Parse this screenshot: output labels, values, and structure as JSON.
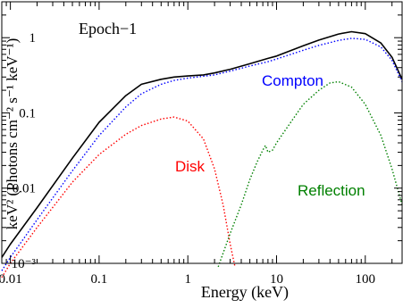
{
  "chart_data": {
    "type": "line",
    "title": "",
    "annotation": "Epoch−1",
    "xlabel": "Energy (keV)",
    "ylabel": "keV² (Photons cm⁻² s⁻¹ keV⁻¹)",
    "xscale": "log",
    "yscale": "log",
    "xlim": [
      0.008,
      260
    ],
    "ylim": [
      0.001,
      3
    ],
    "x_ticks": [
      {
        "value": 0.01,
        "label": "0.01"
      },
      {
        "value": 0.1,
        "label": "0.1"
      },
      {
        "value": 1,
        "label": "1"
      },
      {
        "value": 10,
        "label": "10"
      },
      {
        "value": 100,
        "label": "100"
      }
    ],
    "y_ticks": [
      {
        "value": 0.001,
        "label": "10⁻³"
      },
      {
        "value": 0.01,
        "label": "0.01"
      },
      {
        "value": 0.1,
        "label": "0.1"
      },
      {
        "value": 1,
        "label": "1"
      }
    ],
    "grid": false,
    "legend": "none",
    "series": [
      {
        "name": "",
        "color": "#000000",
        "style": "solid",
        "points": [
          [
            0.008,
            0.0012
          ],
          [
            0.01,
            0.0018
          ],
          [
            0.02,
            0.0055
          ],
          [
            0.05,
            0.025
          ],
          [
            0.1,
            0.075
          ],
          [
            0.2,
            0.17
          ],
          [
            0.3,
            0.24
          ],
          [
            0.5,
            0.28
          ],
          [
            0.7,
            0.3
          ],
          [
            1,
            0.31
          ],
          [
            1.5,
            0.32
          ],
          [
            2,
            0.34
          ],
          [
            3,
            0.38
          ],
          [
            5,
            0.45
          ],
          [
            8,
            0.53
          ],
          [
            10,
            0.57
          ],
          [
            20,
            0.78
          ],
          [
            30,
            0.93
          ],
          [
            50,
            1.12
          ],
          [
            70,
            1.2
          ],
          [
            100,
            1.13
          ],
          [
            150,
            0.85
          ],
          [
            200,
            0.55
          ],
          [
            260,
            0.28
          ]
        ]
      },
      {
        "name": "Compton",
        "color": "#0000ff",
        "style": "dotted",
        "label": "Compton",
        "points": [
          [
            0.008,
            0.0008
          ],
          [
            0.01,
            0.0012
          ],
          [
            0.02,
            0.0038
          ],
          [
            0.05,
            0.017
          ],
          [
            0.1,
            0.05
          ],
          [
            0.2,
            0.12
          ],
          [
            0.3,
            0.18
          ],
          [
            0.5,
            0.24
          ],
          [
            0.7,
            0.27
          ],
          [
            1,
            0.29
          ],
          [
            2,
            0.32
          ],
          [
            3,
            0.36
          ],
          [
            5,
            0.42
          ],
          [
            8,
            0.48
          ],
          [
            10,
            0.52
          ],
          [
            20,
            0.68
          ],
          [
            30,
            0.79
          ],
          [
            50,
            0.92
          ],
          [
            70,
            0.98
          ],
          [
            100,
            0.95
          ],
          [
            150,
            0.75
          ],
          [
            200,
            0.5
          ],
          [
            260,
            0.26
          ]
        ]
      },
      {
        "name": "Disk",
        "color": "#ff0000",
        "style": "dotted",
        "label": "Disk",
        "points": [
          [
            0.008,
            0.00065
          ],
          [
            0.01,
            0.001
          ],
          [
            0.02,
            0.003
          ],
          [
            0.05,
            0.012
          ],
          [
            0.1,
            0.028
          ],
          [
            0.2,
            0.052
          ],
          [
            0.3,
            0.068
          ],
          [
            0.5,
            0.083
          ],
          [
            0.7,
            0.088
          ],
          [
            1,
            0.078
          ],
          [
            1.5,
            0.045
          ],
          [
            2,
            0.018
          ],
          [
            2.5,
            0.006
          ],
          [
            3,
            0.0018
          ],
          [
            3.4,
            0.0009
          ]
        ]
      },
      {
        "name": "Reflection",
        "color": "#008000",
        "style": "dotted",
        "label": "Reflection",
        "points": [
          [
            2.2,
            0.0009
          ],
          [
            3,
            0.0025
          ],
          [
            4,
            0.006
          ],
          [
            5,
            0.013
          ],
          [
            6,
            0.022
          ],
          [
            7,
            0.032
          ],
          [
            7.5,
            0.037
          ],
          [
            8,
            0.03
          ],
          [
            9,
            0.032
          ],
          [
            10,
            0.04
          ],
          [
            15,
            0.08
          ],
          [
            20,
            0.13
          ],
          [
            30,
            0.2
          ],
          [
            40,
            0.25
          ],
          [
            50,
            0.26
          ],
          [
            70,
            0.22
          ],
          [
            100,
            0.13
          ],
          [
            150,
            0.05
          ],
          [
            200,
            0.018
          ],
          [
            260,
            0.006
          ]
        ]
      }
    ]
  }
}
